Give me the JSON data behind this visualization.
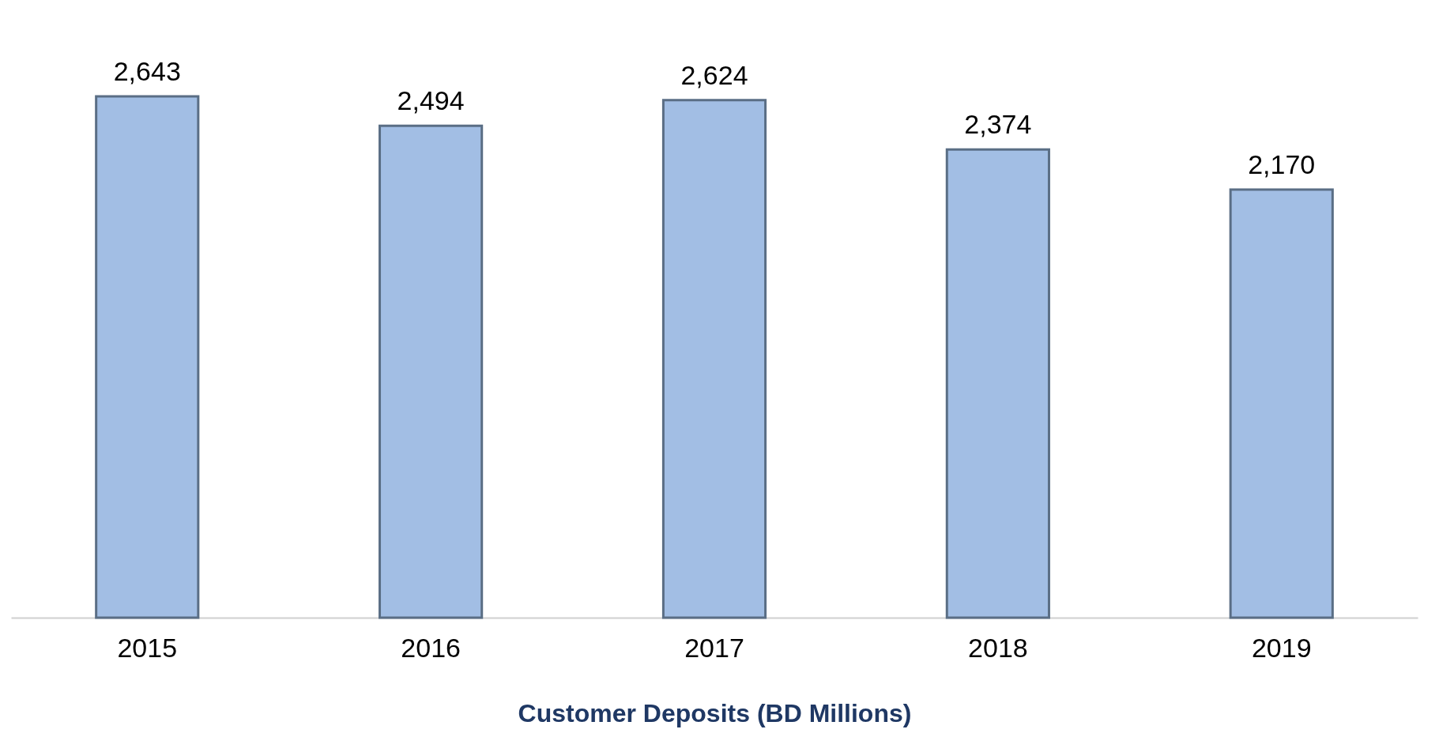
{
  "chart_data": {
    "type": "bar",
    "xlabel": "Customer Deposits (BD Millions)",
    "categories": [
      "2015",
      "2016",
      "2017",
      "2018",
      "2019"
    ],
    "values": [
      2643,
      2494,
      2624,
      2374,
      2170
    ],
    "value_labels": [
      "2,643",
      "2,494",
      "2,624",
      "2,374",
      "2,170"
    ],
    "color": "#a2bee4"
  }
}
